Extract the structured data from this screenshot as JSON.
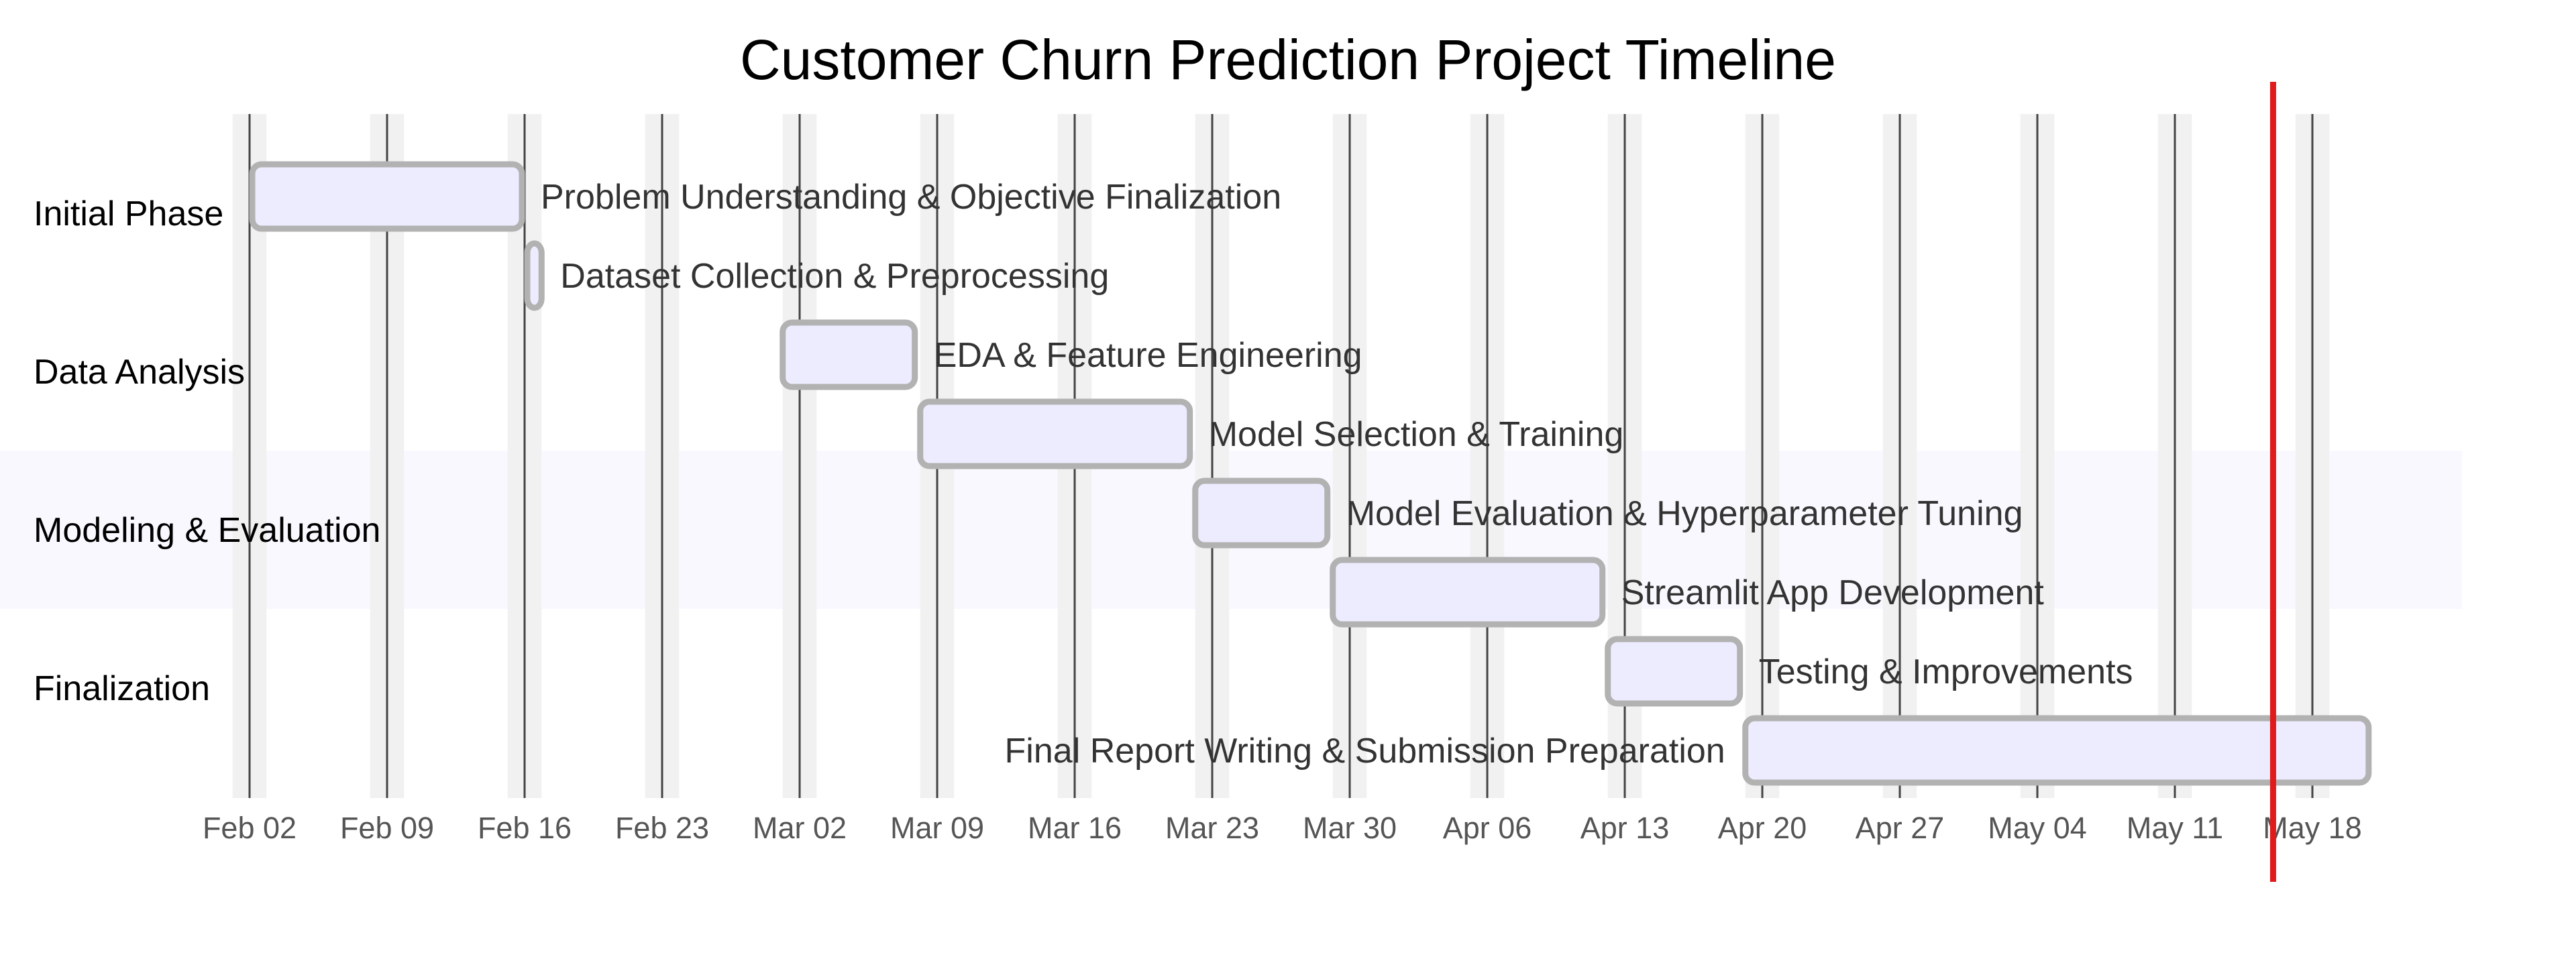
{
  "chart_data": {
    "type": "gantt",
    "title": "Customer Churn Prediction Project Timeline",
    "x_ticks": [
      "Feb 02",
      "Feb 09",
      "Feb 16",
      "Feb 23",
      "Mar 02",
      "Mar 09",
      "Mar 16",
      "Mar 23",
      "Mar 30",
      "Apr 06",
      "Apr 13",
      "Apr 20",
      "Apr 27",
      "May 04",
      "May 11",
      "May 18"
    ],
    "x_range": [
      "2025-02-02",
      "2025-05-18"
    ],
    "today_marker": "2025-05-16",
    "colors": {
      "bar_fill": "#ececfe",
      "bar_stroke": "#b2b2b2",
      "weekend_band": "#f1f1f1",
      "grid_line": "#444444",
      "today_line": "#e01b1b",
      "highlight_section": "#f9f8ff"
    },
    "sections": [
      {
        "name": "Initial Phase",
        "highlighted": false
      },
      {
        "name": "Data Analysis",
        "highlighted": false
      },
      {
        "name": "Modeling & Evaluation",
        "highlighted": true
      },
      {
        "name": "Finalization",
        "highlighted": false
      }
    ],
    "tasks": [
      {
        "name": "Problem Understanding & Objective Finalization",
        "section": "Initial Phase",
        "start": "2025-02-02",
        "end": "2025-02-15",
        "label_side": "right"
      },
      {
        "name": "Dataset Collection & Preprocessing",
        "section": "Initial Phase",
        "start": "2025-02-16",
        "end": "2025-02-16",
        "label_side": "right"
      },
      {
        "name": "EDA & Feature Engineering",
        "section": "Data Analysis",
        "start": "2025-03-01",
        "end": "2025-03-07",
        "label_side": "right"
      },
      {
        "name": "Model Selection & Training",
        "section": "Data Analysis",
        "start": "2025-03-08",
        "end": "2025-03-21",
        "label_side": "right"
      },
      {
        "name": "Model Evaluation & Hyperparameter Tuning",
        "section": "Modeling & Evaluation",
        "start": "2025-03-22",
        "end": "2025-03-28",
        "label_side": "right"
      },
      {
        "name": "Streamlit App Development",
        "section": "Modeling & Evaluation",
        "start": "2025-03-29",
        "end": "2025-04-11",
        "label_side": "right"
      },
      {
        "name": "Testing & Improvements",
        "section": "Finalization",
        "start": "2025-04-12",
        "end": "2025-04-18",
        "label_side": "right"
      },
      {
        "name": "Final Report Writing & Submission Preparation",
        "section": "Finalization",
        "start": "2025-04-19",
        "end": "2025-05-20",
        "label_side": "left"
      }
    ]
  }
}
